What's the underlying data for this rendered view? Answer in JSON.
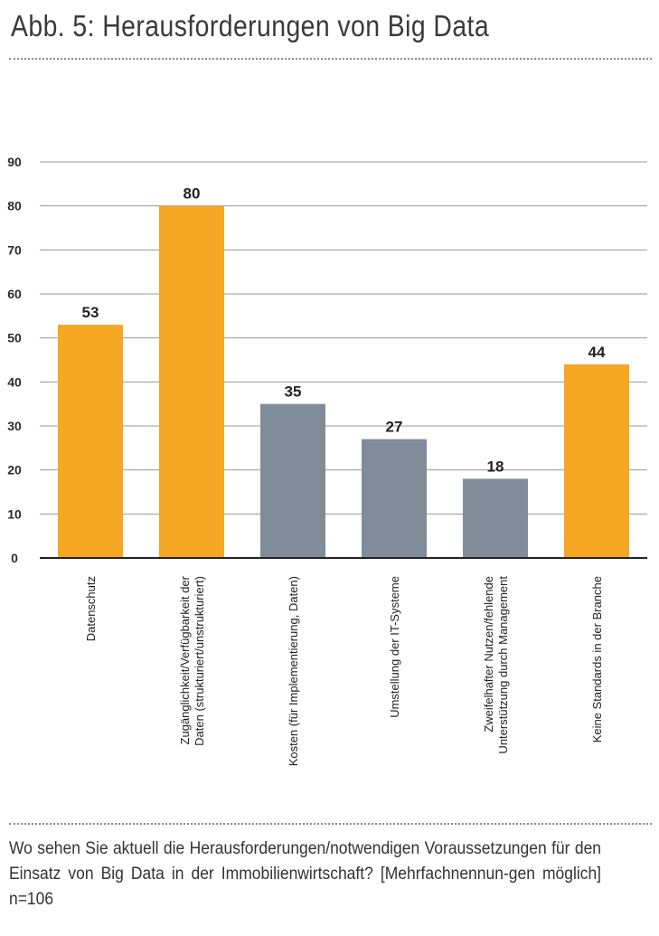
{
  "header": {
    "title": "Abb. 5: Herausforderungen von Big Data"
  },
  "caption": {
    "text": "Wo sehen Sie aktuell die Herausforderungen/notwendigen Voraussetzungen für den Einsatz von Big Data in der Immobilienwirtschaft? [Mehrfachnennun-gen möglich] n=106"
  },
  "colors": {
    "orange": "#F5A623",
    "gray": "#7F8C99",
    "grid": "#9a9a9a"
  },
  "chart_data": {
    "type": "bar",
    "categories": [
      [
        "Datenschutz"
      ],
      [
        "Zugänglichkeit/Verfügbarkeit der",
        "Daten (strukturiert/unstrukturiert)"
      ],
      [
        "Kosten (für Implementierung, Daten)"
      ],
      [
        "Umstellung der IT-Systeme"
      ],
      [
        "Zweifelhafter Nutzen/fehlende",
        "Unterstützung durch Management"
      ],
      [
        "Keine Standards in der Branche"
      ]
    ],
    "values": [
      53,
      80,
      35,
      27,
      18,
      44
    ],
    "bar_colors": [
      "orange",
      "orange",
      "gray",
      "gray",
      "gray",
      "orange"
    ],
    "ylim": [
      0,
      90
    ],
    "yticks": [
      0,
      10,
      20,
      30,
      40,
      50,
      60,
      70,
      80,
      90
    ],
    "grid": true,
    "title": "",
    "xlabel": "",
    "ylabel": ""
  }
}
